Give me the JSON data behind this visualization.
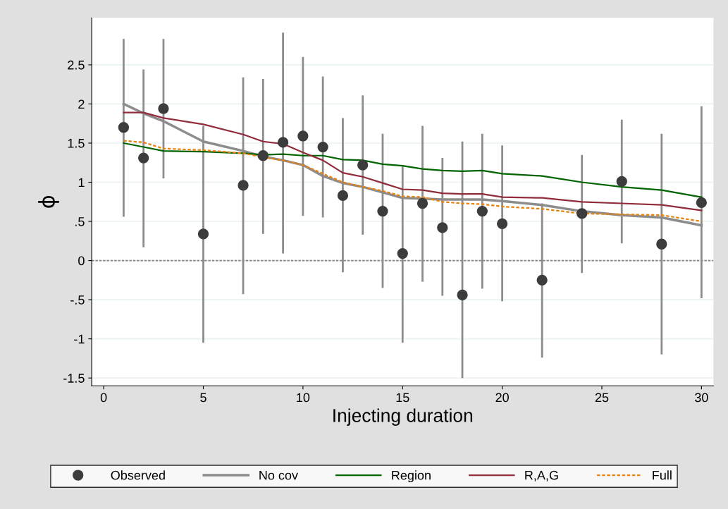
{
  "chart_data": {
    "type": "line",
    "xlabel": "Injecting duration",
    "ylabel": "ϕ",
    "x": [
      1,
      2,
      3,
      5,
      7,
      8,
      9,
      10,
      11,
      12,
      13,
      14,
      15,
      16,
      17,
      18,
      19,
      20,
      22,
      24,
      26,
      28,
      30
    ],
    "series": [
      {
        "name": "Observed",
        "type": "scatter",
        "marker": "circle",
        "color": "#3c3c3c",
        "values": [
          1.7,
          1.31,
          1.94,
          0.34,
          0.96,
          1.34,
          1.51,
          1.59,
          1.45,
          0.83,
          1.22,
          0.63,
          0.09,
          0.73,
          0.42,
          -0.44,
          0.63,
          0.47,
          -0.25,
          0.6,
          1.01,
          0.21,
          0.74
        ],
        "errors": [
          [
            0.56,
            2.83
          ],
          [
            0.17,
            2.44
          ],
          [
            1.05,
            2.83
          ],
          [
            -1.05,
            1.72
          ],
          [
            -0.43,
            2.34
          ],
          [
            0.34,
            2.32
          ],
          [
            0.09,
            2.91
          ],
          [
            0.57,
            2.6
          ],
          [
            0.55,
            2.35
          ],
          [
            -0.15,
            1.82
          ],
          [
            0.33,
            2.11
          ],
          [
            -0.35,
            1.62
          ],
          [
            -1.05,
            1.2
          ],
          [
            -0.27,
            1.72
          ],
          [
            -0.45,
            1.31
          ],
          [
            -1.5,
            1.52
          ],
          [
            -0.36,
            1.62
          ],
          [
            -0.52,
            1.47
          ],
          [
            -1.24,
            0.73
          ],
          [
            -0.16,
            1.35
          ],
          [
            0.22,
            1.8
          ],
          [
            -1.2,
            1.62
          ],
          [
            -0.48,
            1.97
          ]
        ]
      },
      {
        "name": "No cov",
        "color": "#8c8c8c",
        "line_style": "solid",
        "values": [
          2.0,
          1.88,
          1.78,
          1.52,
          1.4,
          1.33,
          1.28,
          1.22,
          1.08,
          0.99,
          0.94,
          0.87,
          0.8,
          0.79,
          0.78,
          0.78,
          0.78,
          0.76,
          0.71,
          0.63,
          0.58,
          0.55,
          0.45
        ]
      },
      {
        "name": "Region",
        "color": "#006400",
        "line_style": "solid",
        "values": [
          1.5,
          1.45,
          1.4,
          1.39,
          1.37,
          1.35,
          1.36,
          1.34,
          1.34,
          1.29,
          1.28,
          1.23,
          1.21,
          1.17,
          1.15,
          1.14,
          1.15,
          1.11,
          1.08,
          1.0,
          0.94,
          0.9,
          0.81
        ]
      },
      {
        "name": "R,A,G",
        "color": "#902c3c",
        "line_style": "solid",
        "values": [
          1.89,
          1.89,
          1.82,
          1.74,
          1.61,
          1.52,
          1.49,
          1.38,
          1.28,
          1.12,
          1.07,
          0.99,
          0.91,
          0.9,
          0.86,
          0.85,
          0.85,
          0.81,
          0.8,
          0.75,
          0.73,
          0.71,
          0.64
        ]
      },
      {
        "name": "Full",
        "color": "#e8820c",
        "line_style": "dashed",
        "values": [
          1.53,
          1.51,
          1.43,
          1.41,
          1.37,
          1.32,
          1.28,
          1.22,
          1.11,
          1.0,
          0.94,
          0.89,
          0.82,
          0.81,
          0.75,
          0.73,
          0.72,
          0.69,
          0.66,
          0.6,
          0.59,
          0.58,
          0.5
        ]
      }
    ],
    "xlim": [
      -0.6,
      30.6
    ],
    "xticks": [
      0,
      5,
      10,
      15,
      20,
      25,
      30
    ],
    "ylim": [
      -1.6,
      3.1
    ],
    "yticks": [
      {
        "value": -1.5,
        "label": "-1.5"
      },
      {
        "value": -1,
        "label": "-1"
      },
      {
        "value": -0.5,
        "label": "-.5"
      },
      0,
      {
        "value": 0.5,
        "label": ".5"
      },
      1,
      1.5,
      2,
      2.5
    ],
    "ref_lines": [
      {
        "axis": "y",
        "value": 0,
        "color": "#808080",
        "line_style": "dashed"
      }
    ],
    "grid": "y",
    "legend": "bottom"
  }
}
